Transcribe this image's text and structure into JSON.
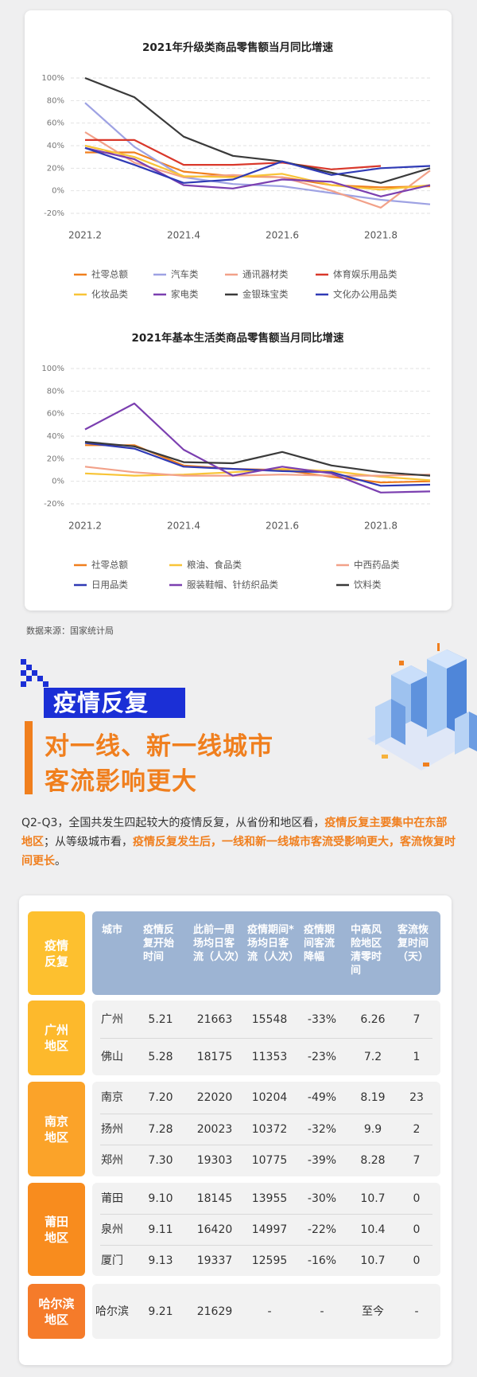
{
  "chart_data": [
    {
      "type": "line",
      "title": "2021年升级类商品零售额当月同比增速",
      "categories": [
        "2021.2",
        null,
        "2021.4",
        null,
        "2021.6",
        null,
        "2021.8",
        null
      ],
      "ylim": [
        -20,
        100
      ],
      "yticks": [
        {
          "value": -20,
          "label": "-20%"
        },
        {
          "value": 0,
          "label": "0%"
        },
        {
          "value": 20,
          "label": "20%"
        },
        {
          "value": 40,
          "label": "40%"
        },
        {
          "value": 60,
          "label": "60%"
        },
        {
          "value": 80,
          "label": "80%"
        },
        {
          "value": 100,
          "label": "100%"
        }
      ],
      "grid": true,
      "series": [
        {
          "name": "社零总额",
          "color": "#f07f1e",
          "values": [
            34,
            34,
            17,
            13,
            12,
            5,
            3,
            4
          ]
        },
        {
          "name": "汽车类",
          "color": "#9ea2e3",
          "values": [
            78,
            39,
            12,
            6,
            4,
            -2,
            -8,
            -12
          ]
        },
        {
          "name": "通讯器材类",
          "color": "#f2a189",
          "values": [
            52,
            25,
            12,
            14,
            12,
            0,
            -15,
            18
          ]
        },
        {
          "name": "体育娱乐用品类",
          "color": "#d9382b",
          "values": [
            45,
            45,
            23,
            23,
            25,
            19,
            22,
            null
          ]
        },
        {
          "name": "化妆品类",
          "color": "#f8c437",
          "values": [
            40,
            30,
            13,
            12,
            15,
            5,
            1,
            5
          ]
        },
        {
          "name": "家电类",
          "color": "#7b3fb0",
          "values": [
            38,
            28,
            5,
            2,
            10,
            8,
            -5,
            5
          ]
        },
        {
          "name": "金银珠宝类",
          "color": "#3a3a3a",
          "values": [
            100,
            83,
            48,
            31,
            26,
            16,
            7,
            20
          ]
        },
        {
          "name": "文化办公用品类",
          "color": "#2f3ab5",
          "values": [
            38,
            23,
            7,
            10,
            26,
            14,
            20,
            22
          ]
        }
      ]
    },
    {
      "type": "line",
      "title": "2021年基本生活类商品零售额当月同比增速",
      "categories": [
        "2021.2",
        null,
        "2021.4",
        null,
        "2021.6",
        null,
        "2021.8",
        null
      ],
      "ylim": [
        -20,
        100
      ],
      "yticks": [
        {
          "value": -20,
          "label": "-20%"
        },
        {
          "value": 0,
          "label": "0%"
        },
        {
          "value": 20,
          "label": "20%"
        },
        {
          "value": 40,
          "label": "40%"
        },
        {
          "value": 60,
          "label": "60%"
        },
        {
          "value": 80,
          "label": "80%"
        },
        {
          "value": 100,
          "label": "100%"
        }
      ],
      "grid": true,
      "series": [
        {
          "name": "社零总额",
          "color": "#f07f1e",
          "values": [
            32,
            32,
            14,
            11,
            10,
            4,
            -1,
            0
          ]
        },
        {
          "name": "粮油、食品类",
          "color": "#f8c437",
          "values": [
            7,
            5,
            6,
            8,
            11,
            9,
            4,
            1
          ]
        },
        {
          "name": "中西药品类",
          "color": "#f2a189",
          "values": [
            13,
            8,
            5,
            5,
            6,
            5,
            5,
            6
          ]
        },
        {
          "name": "日用品类",
          "color": "#2f3ab5",
          "values": [
            34,
            29,
            13,
            11,
            9,
            8,
            -4,
            -3
          ]
        },
        {
          "name": "服装鞋帽、针纺织品类",
          "color": "#7b3fb0",
          "values": [
            46,
            69,
            28,
            5,
            13,
            7,
            -10,
            -9
          ]
        },
        {
          "name": "饮料类",
          "color": "#3a3a3a",
          "values": [
            35,
            31,
            17,
            16,
            26,
            14,
            8,
            5
          ]
        }
      ]
    }
  ],
  "source": "数据来源：国家统计局",
  "heading": {
    "tag": "疫情反复",
    "lines": [
      "对一线、新一线城市",
      "客流影响更大"
    ]
  },
  "paragraph": [
    "Q2-Q3，全国共发生四起较大的疫情反复，从省份和地区看，",
    "疫情反复主要集中在东部地区",
    "；从等级城市看，",
    "疫情反复发生后，一线和新一线城市客流受影响更大，客流恢复时间更长",
    "。"
  ],
  "table": {
    "corner": "疫情反复",
    "header": [
      "城市",
      "疫情反复开始时间",
      "此前一周场均日客流（人次）",
      "疫情期间*场均日客流（人次）",
      "疫情期间客流降幅",
      "中高风险地区清零时间",
      "客流恢复时间（天）"
    ],
    "groups": [
      {
        "label": "广州地区",
        "rows": [
          [
            "广州",
            "5.21",
            "21663",
            "15548",
            "-33%",
            "6.26",
            "7"
          ],
          [
            "佛山",
            "5.28",
            "18175",
            "11353",
            "-23%",
            "7.2",
            "1"
          ]
        ]
      },
      {
        "label": "南京地区",
        "rows": [
          [
            "南京",
            "7.20",
            "22020",
            "10204",
            "-49%",
            "8.19",
            "23"
          ],
          [
            "扬州",
            "7.28",
            "20023",
            "10372",
            "-32%",
            "9.9",
            "2"
          ],
          [
            "郑州",
            "7.30",
            "19303",
            "10775",
            "-39%",
            "8.28",
            "7"
          ]
        ]
      },
      {
        "label": "莆田地区",
        "rows": [
          [
            "莆田",
            "9.10",
            "18145",
            "13955",
            "-30%",
            "10.7",
            "0"
          ],
          [
            "泉州",
            "9.11",
            "16420",
            "14997",
            "-22%",
            "10.4",
            "0"
          ],
          [
            "厦门",
            "9.13",
            "19337",
            "12595",
            "-16%",
            "10.7",
            "0"
          ]
        ]
      },
      {
        "label": "哈尔滨地区",
        "rows": [
          [
            "哈尔滨",
            "9.21",
            "21629",
            "-",
            "-",
            "至今",
            "-"
          ]
        ]
      }
    ]
  }
}
